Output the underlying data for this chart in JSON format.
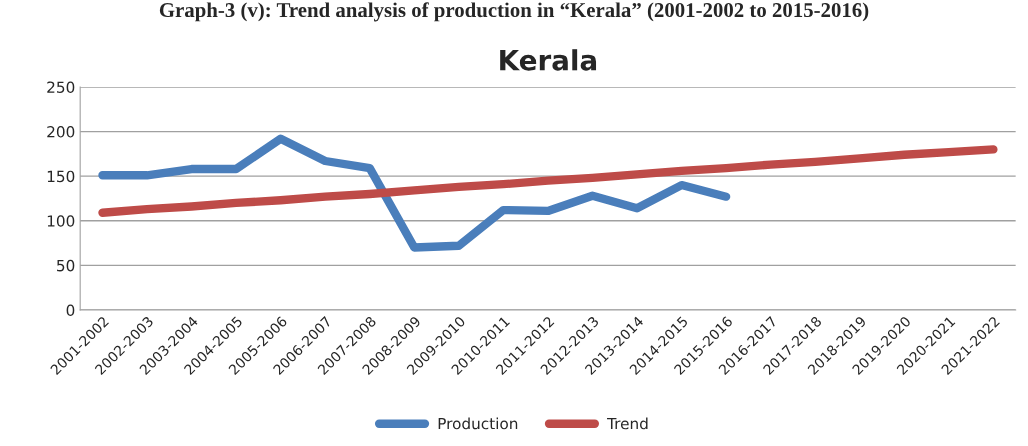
{
  "chart_data": {
    "type": "line",
    "title": "Kerala",
    "annotations": [
      "Graph-3 (v): Trend analysis of production in “Kerala” (2001-2002 to 2015-2016)"
    ],
    "categories": [
      "2001-2002",
      "2002-2003",
      "2003-2004",
      "2004-2005",
      "2005-2006",
      "2006-2007",
      "2007-2008",
      "2008-2009",
      "2009-2010",
      "2010-2011",
      "2011-2012",
      "2012-2013",
      "2013-2014",
      "2014-2015",
      "2015-2016",
      "2016-2017",
      "2017-2018",
      "2018-2019",
      "2019-2020",
      "2020-2021",
      "2021-2022"
    ],
    "series": [
      {
        "name": "Production",
        "color": "#4a7ebb",
        "values": [
          151,
          151,
          158,
          158,
          192,
          167,
          159,
          70,
          72,
          112,
          111,
          128,
          114,
          140,
          127,
          null,
          null,
          null,
          null,
          null,
          null
        ]
      },
      {
        "name": "Trend",
        "color": "#be4b48",
        "values": [
          109,
          113,
          116,
          120,
          123,
          127,
          130,
          134,
          138,
          141,
          145,
          148,
          152,
          156,
          159,
          163,
          166,
          170,
          174,
          177,
          180
        ]
      }
    ],
    "ylim": [
      0,
      250
    ],
    "yticks": [
      0,
      50,
      100,
      150,
      200,
      250
    ],
    "grid": "y",
    "legend": "bottom",
    "marker": "none",
    "line_style": "solid"
  }
}
